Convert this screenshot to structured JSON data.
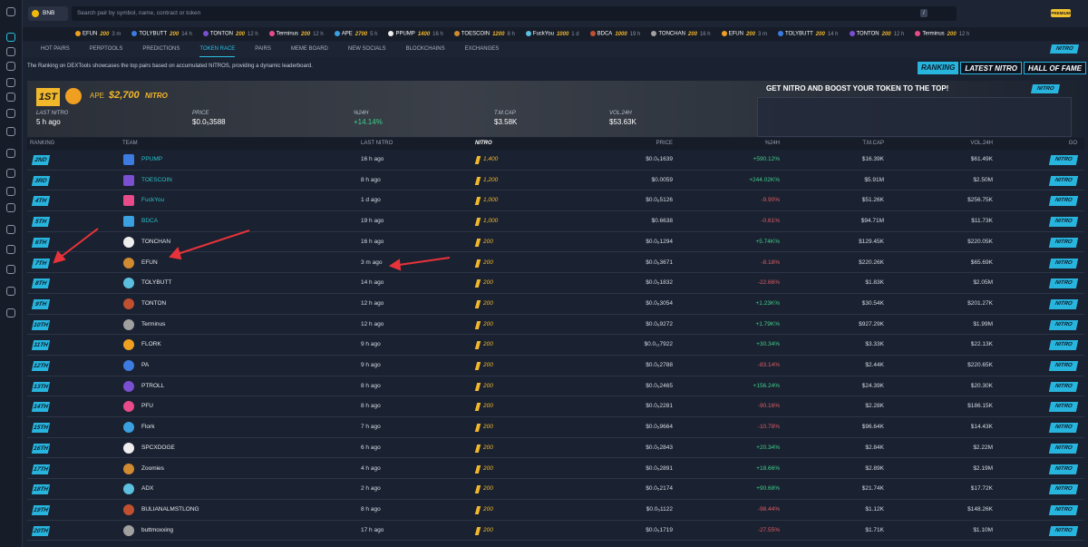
{
  "topbar": {
    "chain": "BNB",
    "search": "Search pair by symbol, name, contract or token",
    "shortcut": "/",
    "premium": "PREMIUM"
  },
  "ticker": [
    {
      "name": "EFUN",
      "amount": "200",
      "age": "3 m"
    },
    {
      "name": "TOLYBUTT",
      "amount": "200",
      "age": "14 h"
    },
    {
      "name": "TONTON",
      "amount": "200",
      "age": "12 h"
    },
    {
      "name": "Terminus",
      "amount": "200",
      "age": "12 h"
    },
    {
      "name": "APE",
      "amount": "2700",
      "age": "5 h"
    },
    {
      "name": "PPUMP",
      "amount": "1400",
      "age": "16 h"
    },
    {
      "name": "TOESCOIN",
      "amount": "1200",
      "age": "8 h"
    },
    {
      "name": "FuckYou",
      "amount": "1000",
      "age": "1 d"
    },
    {
      "name": "BDCA",
      "amount": "1000",
      "age": "19 h"
    },
    {
      "name": "TONCHAN",
      "amount": "200",
      "age": "16 h"
    },
    {
      "name": "EFUN",
      "amount": "200",
      "age": "3 m"
    },
    {
      "name": "TOLYBUTT",
      "amount": "200",
      "age": "14 h"
    },
    {
      "name": "TONTON",
      "amount": "200",
      "age": "12 h"
    },
    {
      "name": "Terminus",
      "amount": "200",
      "age": "12 h"
    }
  ],
  "tabs": [
    "HOT PAIRS",
    "PERPTOOLS",
    "PREDICTIONS",
    "TOKEN RACE",
    "PAIRS",
    "MEME BOARD",
    "NEW SOCIALS",
    "BLOCKCHAINS",
    "EXCHANGES"
  ],
  "nitro_button": "NITRO",
  "description": "The Ranking on DEXTools showcases the top pairs based on accumulated NITROS, providing a dynamic leaderboard.",
  "views": [
    "RANKING",
    "LATEST NITRO",
    "HALL OF FAME"
  ],
  "leader": {
    "rank": "1ST",
    "name": "APE",
    "nitro": "$2,700",
    "nitro_label": "NITRO",
    "fields": [
      {
        "label": "LAST NITRO",
        "value": "5 h ago"
      },
      {
        "label": "PRICE",
        "value": "$0.0₅3588"
      },
      {
        "label": "%24H",
        "value": "+14.14%"
      },
      {
        "label": "T.M.CAP",
        "value": "$3.58K"
      },
      {
        "label": "VOL.24H",
        "value": "$53.63K"
      }
    ]
  },
  "promo": {
    "title": "GET NITRO AND BOOST YOUR TOKEN TO THE TOP!",
    "badge": "NITRO"
  },
  "table": {
    "headers": [
      "RANKING",
      "TEAM",
      "LAST NITRO",
      "NITRO",
      "PRICE",
      "%24H",
      "T.M.CAP",
      "VOL.24H",
      "GO"
    ],
    "go_label": "NITRO",
    "rows": [
      {
        "rank": "2ND",
        "team": "PPUMP",
        "last": "16 h ago",
        "nitro": "1,400",
        "price": "$0.0₅1639",
        "change": "+590.12%",
        "mcap": "$16.39K",
        "vol": "$61.49K"
      },
      {
        "rank": "3RD",
        "team": "TOESCOIN",
        "last": "8 h ago",
        "nitro": "1,200",
        "price": "$0.0059",
        "change": "+244.02K%",
        "mcap": "$5.91M",
        "vol": "$2.50M"
      },
      {
        "rank": "4TH",
        "team": "FuckYou",
        "last": "1 d ago",
        "nitro": "1,000",
        "price": "$0.0₆5126",
        "change": "-9.90%",
        "mcap": "$51.26K",
        "vol": "$256.75K"
      },
      {
        "rank": "5TH",
        "team": "BDCA",
        "last": "19 h ago",
        "nitro": "1,000",
        "price": "$0.6638",
        "change": "-0.61%",
        "mcap": "$94.71M",
        "vol": "$11.73K"
      },
      {
        "rank": "6TH",
        "team": "TONCHAN",
        "last": "16 h ago",
        "nitro": "200",
        "price": "$0.0₆1294",
        "change": "+5.74K%",
        "mcap": "$129.45K",
        "vol": "$220.05K"
      },
      {
        "rank": "7TH",
        "team": "EFUN",
        "last": "3 m ago",
        "nitro": "200",
        "price": "$0.0₆3671",
        "change": "-8.18%",
        "mcap": "$220.26K",
        "vol": "$65.69K"
      },
      {
        "rank": "8TH",
        "team": "TOLYBUTT",
        "last": "14 h ago",
        "nitro": "200",
        "price": "$0.0₅1832",
        "change": "-22.66%",
        "mcap": "$1.83K",
        "vol": "$2.05M"
      },
      {
        "rank": "9TH",
        "team": "TONTON",
        "last": "12 h ago",
        "nitro": "200",
        "price": "$0.0₆3054",
        "change": "+1.23K%",
        "mcap": "$30.54K",
        "vol": "$201.27K"
      },
      {
        "rank": "10TH",
        "team": "Terminus",
        "last": "12 h ago",
        "nitro": "200",
        "price": "$0.0₆9272",
        "change": "+1.79K%",
        "mcap": "$927.29K",
        "vol": "$1.99M"
      },
      {
        "rank": "11TH",
        "team": "FLORK",
        "last": "9 h ago",
        "nitro": "200",
        "price": "$0.0₁₁7922",
        "change": "+30.34%",
        "mcap": "$3.33K",
        "vol": "$22.13K"
      },
      {
        "rank": "12TH",
        "team": "PA",
        "last": "9 h ago",
        "nitro": "200",
        "price": "$0.0₅2788",
        "change": "-83.14%",
        "mcap": "$2.44K",
        "vol": "$220.65K"
      },
      {
        "rank": "13TH",
        "team": "PTROLL",
        "last": "8 h ago",
        "nitro": "200",
        "price": "$0.0₅2465",
        "change": "+156.24%",
        "mcap": "$24.39K",
        "vol": "$20.30K"
      },
      {
        "rank": "14TH",
        "team": "PFU",
        "last": "8 h ago",
        "nitro": "200",
        "price": "$0.0₅2281",
        "change": "-90.16%",
        "mcap": "$2.28K",
        "vol": "$186.15K"
      },
      {
        "rank": "15TH",
        "team": "Flork",
        "last": "7 h ago",
        "nitro": "200",
        "price": "$0.0₅9664",
        "change": "-10.78%",
        "mcap": "$96.64K",
        "vol": "$14.43K"
      },
      {
        "rank": "16TH",
        "team": "SPCXDOGE",
        "last": "6 h ago",
        "nitro": "200",
        "price": "$0.0₅2843",
        "change": "+20.34%",
        "mcap": "$2.84K",
        "vol": "$2.22M"
      },
      {
        "rank": "17TH",
        "team": "Zoomies",
        "last": "4 h ago",
        "nitro": "200",
        "price": "$0.0₅2891",
        "change": "+18.66%",
        "mcap": "$2.89K",
        "vol": "$2.19M"
      },
      {
        "rank": "18TH",
        "team": "ADX",
        "last": "2 h ago",
        "nitro": "200",
        "price": "$0.0₅2174",
        "change": "+90.68%",
        "mcap": "$21.74K",
        "vol": "$17.72K"
      },
      {
        "rank": "19TH",
        "team": "BULIANALMSTLONG",
        "last": "8 h ago",
        "nitro": "200",
        "price": "$0.0₅1122",
        "change": "-98.44%",
        "mcap": "$1.12K",
        "vol": "$148.26K"
      },
      {
        "rank": "20TH",
        "team": "buttmoxxing",
        "last": "17 h ago",
        "nitro": "200",
        "price": "$0.0₅1719",
        "change": "-27.55%",
        "mcap": "$1.71K",
        "vol": "$1.10M"
      }
    ]
  }
}
